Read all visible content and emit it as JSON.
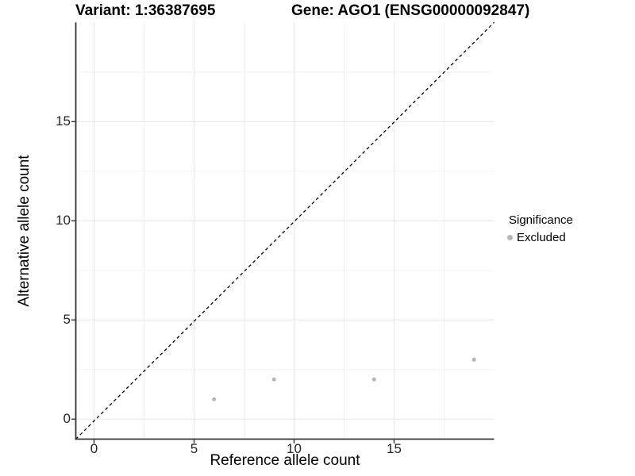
{
  "colors": {
    "background": "#ffffff",
    "grid_major": "#e6e6e6",
    "grid_minor": "#f2f2f2",
    "axis_line": "#333333",
    "tick_mark": "#333333",
    "tick_text": "#262626",
    "point": "#b6b6b6",
    "ref_line": "#000000"
  },
  "chart_data": {
    "type": "scatter",
    "title_left": "Variant: 1:36387695",
    "title_right": "Gene: AGO1 (ENSG00000092847)",
    "xlabel": "Reference allele count",
    "ylabel": "Alternative allele count",
    "xlim": [
      -1,
      20
    ],
    "ylim": [
      -1,
      20
    ],
    "x_ticks": [
      0,
      5,
      10,
      15
    ],
    "y_ticks": [
      0,
      5,
      10,
      15
    ],
    "minor_grid_step": 2.5,
    "grid": "major+minor",
    "legend": {
      "title": "Significance",
      "position": "right",
      "items": [
        {
          "label": "Excluded",
          "color": "#b6b6b6"
        }
      ]
    },
    "series": [
      {
        "name": "Excluded",
        "color": "#b6b6b6",
        "points": [
          [
            6,
            1
          ],
          [
            9,
            2
          ],
          [
            14,
            2
          ],
          [
            19,
            3
          ]
        ]
      }
    ],
    "reference_line": {
      "type": "identity",
      "slope": 1,
      "intercept": 0,
      "style": "dashed",
      "color": "#000000"
    }
  }
}
